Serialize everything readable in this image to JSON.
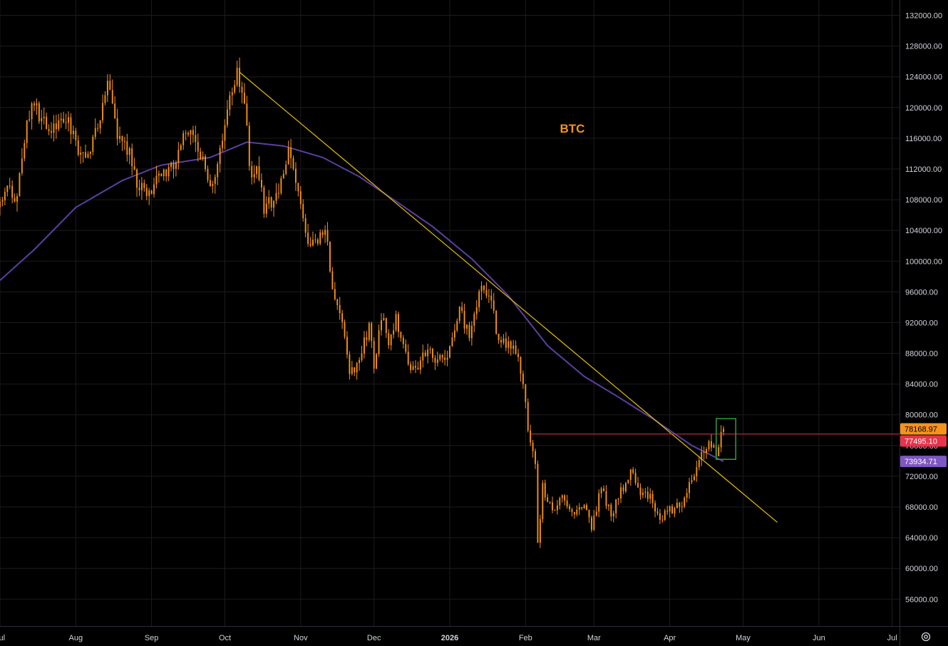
{
  "chart_data": {
    "type": "candlestick",
    "title": "BTC",
    "y_axis": {
      "min": 52500,
      "max": 134000,
      "ticks": [
        56000,
        60000,
        64000,
        68000,
        72000,
        76000,
        80000,
        84000,
        88000,
        92000,
        96000,
        100000,
        104000,
        108000,
        112000,
        116000,
        120000,
        124000,
        128000,
        132000
      ],
      "tick_labels": [
        "56000.00",
        "60000.00",
        "64000.00",
        "68000.00",
        "72000.00",
        "76000.00",
        "80000.00",
        "84000.00",
        "88000.00",
        "92000.00",
        "96000.00",
        "100000.00",
        "104000.00",
        "108000.00",
        "112000.00",
        "116000.00",
        "120000.00",
        "124000.00",
        "128000.00",
        "132000.00"
      ]
    },
    "x_axis": {
      "start": "2025-07-01",
      "end": "2026-07-04",
      "ticks": [
        {
          "date": "2025-07-01",
          "label": "Jul",
          "bold": false
        },
        {
          "date": "2025-08-01",
          "label": "Aug",
          "bold": false
        },
        {
          "date": "2025-09-01",
          "label": "Sep",
          "bold": false
        },
        {
          "date": "2025-10-01",
          "label": "Oct",
          "bold": false
        },
        {
          "date": "2025-11-01",
          "label": "Nov",
          "bold": false
        },
        {
          "date": "2025-12-01",
          "label": "Dec",
          "bold": false
        },
        {
          "date": "2026-01-01",
          "label": "2026",
          "bold": true
        },
        {
          "date": "2026-02-01",
          "label": "Feb",
          "bold": false
        },
        {
          "date": "2026-03-01",
          "label": "Mar",
          "bold": false
        },
        {
          "date": "2026-04-01",
          "label": "Apr",
          "bold": false
        },
        {
          "date": "2026-05-01",
          "label": "May",
          "bold": false
        },
        {
          "date": "2026-06-01",
          "label": "Jun",
          "bold": false
        },
        {
          "date": "2026-07-01",
          "label": "Jul",
          "bold": false
        }
      ]
    },
    "grid": true,
    "price_keyframes": [
      [
        "2025-07-01",
        107000
      ],
      [
        "2025-07-04",
        109000
      ],
      [
        "2025-07-08",
        108500
      ],
      [
        "2025-07-11",
        116000
      ],
      [
        "2025-07-14",
        120500
      ],
      [
        "2025-07-18",
        118500
      ],
      [
        "2025-07-23",
        117500
      ],
      [
        "2025-07-28",
        119000
      ],
      [
        "2025-08-02",
        114000
      ],
      [
        "2025-08-05",
        113500
      ],
      [
        "2025-08-09",
        116500
      ],
      [
        "2025-08-14",
        123000
      ],
      [
        "2025-08-18",
        116000
      ],
      [
        "2025-08-23",
        114000
      ],
      [
        "2025-08-26",
        110500
      ],
      [
        "2025-08-31",
        108500
      ],
      [
        "2025-09-04",
        110800
      ],
      [
        "2025-09-09",
        112000
      ],
      [
        "2025-09-13",
        115500
      ],
      [
        "2025-09-18",
        116800
      ],
      [
        "2025-09-22",
        112800
      ],
      [
        "2025-09-25",
        109500
      ],
      [
        "2025-09-28",
        112000
      ],
      [
        "2025-10-02",
        120000
      ],
      [
        "2025-10-06",
        124500
      ],
      [
        "2025-10-09",
        121500
      ],
      [
        "2025-10-11",
        112000
      ],
      [
        "2025-10-15",
        111500
      ],
      [
        "2025-10-17",
        107000
      ],
      [
        "2025-10-22",
        108000
      ],
      [
        "2025-10-27",
        114000
      ],
      [
        "2025-10-31",
        110000
      ],
      [
        "2025-11-04",
        102000
      ],
      [
        "2025-11-08",
        103000
      ],
      [
        "2025-11-11",
        105000
      ],
      [
        "2025-11-14",
        96000
      ],
      [
        "2025-11-18",
        92500
      ],
      [
        "2025-11-21",
        85000
      ],
      [
        "2025-11-25",
        87500
      ],
      [
        "2025-11-29",
        91500
      ],
      [
        "2025-12-01",
        86500
      ],
      [
        "2025-12-04",
        93000
      ],
      [
        "2025-12-07",
        89500
      ],
      [
        "2025-12-10",
        92500
      ],
      [
        "2025-12-15",
        86500
      ],
      [
        "2025-12-18",
        85500
      ],
      [
        "2025-12-21",
        88500
      ],
      [
        "2025-12-26",
        87500
      ],
      [
        "2025-12-31",
        87700
      ],
      [
        "2026-01-05",
        93500
      ],
      [
        "2026-01-09",
        90500
      ],
      [
        "2026-01-14",
        96500
      ],
      [
        "2026-01-18",
        95000
      ],
      [
        "2026-01-21",
        89500
      ],
      [
        "2026-01-25",
        89000
      ],
      [
        "2026-01-29",
        88000
      ],
      [
        "2026-01-31",
        84000
      ],
      [
        "2026-02-02",
        78000
      ],
      [
        "2026-02-05",
        73000
      ],
      [
        "2026-02-06",
        63000
      ],
      [
        "2026-02-08",
        70500
      ],
      [
        "2026-02-12",
        67500
      ],
      [
        "2026-02-16",
        69000
      ],
      [
        "2026-02-20",
        67000
      ],
      [
        "2026-02-25",
        68000
      ],
      [
        "2026-02-28",
        65500
      ],
      [
        "2026-03-04",
        70500
      ],
      [
        "2026-03-08",
        67000
      ],
      [
        "2026-03-12",
        70000
      ],
      [
        "2026-03-16",
        72500
      ],
      [
        "2026-03-20",
        70000
      ],
      [
        "2026-03-24",
        69500
      ],
      [
        "2026-03-28",
        66500
      ],
      [
        "2026-04-01",
        67500
      ],
      [
        "2026-04-06",
        68500
      ],
      [
        "2026-04-10",
        72000
      ],
      [
        "2026-04-14",
        74500
      ],
      [
        "2026-04-17",
        77000
      ],
      [
        "2026-04-20",
        75000
      ],
      [
        "2026-04-23",
        78168.97
      ]
    ],
    "moving_average": {
      "color": "#5b3fa0",
      "points": [
        [
          "2025-07-01",
          97500
        ],
        [
          "2025-07-15",
          101500
        ],
        [
          "2025-08-01",
          107000
        ],
        [
          "2025-08-20",
          110500
        ],
        [
          "2025-09-05",
          112500
        ],
        [
          "2025-09-25",
          113500
        ],
        [
          "2025-10-10",
          115500
        ],
        [
          "2025-10-25",
          115000
        ],
        [
          "2025-11-10",
          113500
        ],
        [
          "2025-11-25",
          111000
        ],
        [
          "2025-12-10",
          107800
        ],
        [
          "2025-12-25",
          104500
        ],
        [
          "2026-01-10",
          100300
        ],
        [
          "2026-01-25",
          95500
        ],
        [
          "2026-02-10",
          89000
        ],
        [
          "2026-02-25",
          85000
        ],
        [
          "2026-03-10",
          82500
        ],
        [
          "2026-03-25",
          79500
        ],
        [
          "2026-04-10",
          76000
        ],
        [
          "2026-04-23",
          73934.71
        ]
      ]
    },
    "trendline": {
      "color": "#e6c000",
      "start": [
        "2025-10-07",
        124600
      ],
      "end": [
        "2026-05-15",
        66000
      ]
    },
    "horizontal_line": {
      "color": "#d9354c",
      "start_date": "2026-02-03",
      "value": 77495.1
    },
    "highlight_box": {
      "color": "#2e9e3e",
      "start_date": "2026-04-20",
      "end_date": "2026-04-28",
      "low": 74200,
      "high": 79500
    },
    "price_badges": [
      {
        "label": "78168.97",
        "value": 78168.97,
        "bg": "#f7931a",
        "fg": "#000000"
      },
      {
        "label": "77495.10",
        "value": 77495.1,
        "bg": "#e8334a",
        "fg": "#ffffff"
      },
      {
        "label": "73934.71",
        "value": 73934.71,
        "bg": "#7e57c2",
        "fg": "#ffffff"
      }
    ],
    "colors": {
      "candle": "#f7931a",
      "background": "#000000",
      "grid": "#1c1c1c",
      "axis_text": "#d1d4dc",
      "title": "#f7931a"
    }
  },
  "icons": {
    "settings": "settings-gear-icon"
  }
}
